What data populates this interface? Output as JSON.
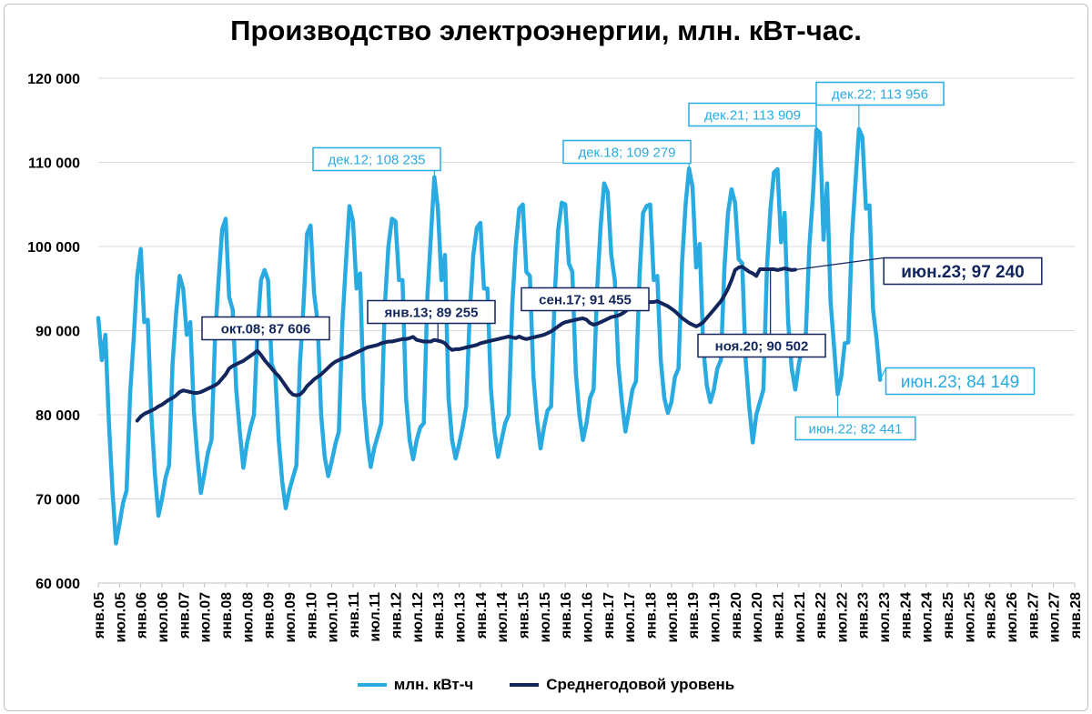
{
  "chart_data": {
    "type": "line",
    "title": "Производство электроэнергии, млн. кВт-час.",
    "ylim": [
      60000,
      120000
    ],
    "yticks": [
      60000,
      70000,
      80000,
      90000,
      100000,
      110000,
      120000
    ],
    "ytick_labels": [
      "60 000",
      "70 000",
      "80 000",
      "90 000",
      "100 000",
      "110 000",
      "120 000"
    ],
    "xtick_labels": [
      "янв.05",
      "июл.05",
      "янв.06",
      "июл.06",
      "янв.07",
      "июл.07",
      "янв.08",
      "июл.08",
      "янв.09",
      "июл.09",
      "янв.10",
      "июл.10",
      "янв.11",
      "июл.11",
      "янв.12",
      "июл.12",
      "янв.13",
      "июл.13",
      "янв.14",
      "июл.14",
      "янв.15",
      "июл.15",
      "янв.16",
      "июл.16",
      "янв.17",
      "июл.17",
      "янв.18",
      "июл.18",
      "янв.19",
      "июл.19",
      "янв.20",
      "июл.20",
      "янв.21",
      "июл.21",
      "янв.22",
      "июл.22",
      "янв.23",
      "июл.23",
      "янв.24",
      "июл.24",
      "янв.25",
      "июл.25",
      "янв.26",
      "июл.26",
      "янв.27",
      "июл.27",
      "янв.28"
    ],
    "grid": true,
    "legend_position": "bottom",
    "series": [
      {
        "name": "млн. кВт-ч",
        "color": "#29abe2",
        "start": "2005-01",
        "values": [
          91500,
          86500,
          89500,
          79000,
          71000,
          64700,
          67000,
          69500,
          71000,
          82500,
          89000,
          96500,
          99700,
          91000,
          91300,
          80000,
          73000,
          68000,
          70000,
          72500,
          74000,
          86000,
          92000,
          96500,
          95000,
          89500,
          91000,
          80500,
          75000,
          70700,
          73000,
          75500,
          77000,
          89000,
          96000,
          102000,
          103300,
          94000,
          92500,
          83000,
          78000,
          73700,
          76500,
          78500,
          80000,
          90000,
          96000,
          97200,
          96000,
          86000,
          85000,
          77000,
          72000,
          68900,
          71000,
          72500,
          74000,
          86000,
          93000,
          101500,
          102500,
          94500,
          91000,
          80000,
          75000,
          72700,
          74500,
          76500,
          78000,
          91000,
          98000,
          104800,
          103000,
          95000,
          96800,
          82000,
          77000,
          73800,
          76000,
          77500,
          79000,
          93000,
          100000,
          103300,
          103000,
          96000,
          96000,
          82000,
          77000,
          74700,
          77000,
          78500,
          79000,
          94000,
          101000,
          108235,
          104500,
          96000,
          99000,
          82000,
          77000,
          74800,
          76500,
          78500,
          81000,
          92000,
          99000,
          102200,
          102800,
          95000,
          95000,
          83000,
          78000,
          75000,
          77000,
          79000,
          80000,
          93000,
          100000,
          104500,
          105000,
          97000,
          96500,
          84500,
          79500,
          76000,
          78500,
          80500,
          81000,
          94000,
          102000,
          105200,
          105000,
          98000,
          97000,
          85000,
          80000,
          77000,
          79000,
          82000,
          83000,
          95000,
          102500,
          107500,
          106500,
          99000,
          96000,
          86000,
          81500,
          78000,
          80500,
          83000,
          84000,
          96500,
          104000,
          104800,
          105000,
          96000,
          96500,
          86500,
          82000,
          80200,
          81500,
          84500,
          85500,
          98000,
          105000,
          109279,
          107000,
          97500,
          100300,
          88000,
          83500,
          81500,
          83000,
          85500,
          86500,
          97500,
          104000,
          106800,
          105200,
          98500,
          98000,
          86500,
          81000,
          76700,
          80000,
          81500,
          83000,
          97500,
          104500,
          108800,
          109200,
          100500,
          104000,
          91000,
          85500,
          83000,
          86000,
          88000,
          89500,
          100000,
          106000,
          113909,
          113500,
          100800,
          107500,
          93500,
          88000,
          82441,
          84500,
          88500,
          88600,
          101000,
          107500,
          113956,
          113000,
          104500,
          104900,
          92500,
          89000,
          84149
        ]
      },
      {
        "name": "Среднегодовой уровень",
        "color": "#12255c",
        "start": "2005-12",
        "values": [
          79300,
          79800,
          80100,
          80300,
          80500,
          80700,
          81000,
          81200,
          81500,
          81800,
          82000,
          82300,
          82700,
          82900,
          82800,
          82700,
          82600,
          82600,
          82700,
          82900,
          83100,
          83300,
          83500,
          83800,
          84300,
          84800,
          85500,
          85800,
          86000,
          86200,
          86400,
          86700,
          87000,
          87300,
          87606,
          87100,
          86500,
          86000,
          85500,
          85000,
          84600,
          84000,
          83400,
          82800,
          82400,
          82300,
          82400,
          82800,
          83400,
          83800,
          84200,
          84500,
          84800,
          85200,
          85600,
          86000,
          86300,
          86500,
          86700,
          86800,
          87000,
          87200,
          87400,
          87600,
          87800,
          88000,
          88100,
          88200,
          88300,
          88500,
          88600,
          88700,
          88700,
          88800,
          88900,
          89000,
          89000,
          89100,
          89255,
          88900,
          88800,
          88700,
          88700,
          88700,
          88900,
          88800,
          88700,
          88500,
          88000,
          87700,
          87800,
          87800,
          87900,
          88000,
          88100,
          88200,
          88300,
          88500,
          88600,
          88700,
          88800,
          88900,
          89000,
          89100,
          89200,
          89300,
          89200,
          89100,
          89300,
          89100,
          89000,
          89100,
          89200,
          89300,
          89400,
          89500,
          89700,
          89900,
          90200,
          90500,
          90800,
          91000,
          91100,
          91200,
          91300,
          91400,
          91455,
          91300,
          90900,
          90700,
          90800,
          91000,
          91200,
          91400,
          91600,
          91700,
          91800,
          92000,
          92300,
          92600,
          92900,
          93000,
          93200,
          93300,
          93300,
          93400,
          93400,
          93500,
          93300,
          93100,
          92900,
          92600,
          92300,
          91900,
          91500,
          91200,
          90900,
          90700,
          90502,
          90700,
          91000,
          91500,
          92000,
          92500,
          93000,
          93500,
          94200,
          95000,
          96000,
          97200,
          97500,
          97600,
          97300,
          97000,
          96800,
          96500,
          97300,
          97300,
          97300,
          97300,
          97300,
          97200,
          97300,
          97400,
          97300,
          97200,
          97240
        ]
      }
    ],
    "annotations": [
      {
        "text": "дек.12; 108 235",
        "series": 0
      },
      {
        "text": "дек.18; 109 279",
        "series": 0
      },
      {
        "text": "дек.21; 113 909",
        "series": 0
      },
      {
        "text": "дек.22; 113 956",
        "series": 0
      },
      {
        "text": "июн.22; 82 441",
        "series": 0
      },
      {
        "text": "июн.23; 84 149",
        "series": 0
      },
      {
        "text": "окт.08;  87 606",
        "series": 1
      },
      {
        "text": "янв.13;  89 255",
        "series": 1
      },
      {
        "text": "сен.17;  91 455",
        "series": 1
      },
      {
        "text": "ноя.20;  90 502",
        "series": 1
      },
      {
        "text": "июн.23;  97 240",
        "series": 1
      }
    ]
  }
}
